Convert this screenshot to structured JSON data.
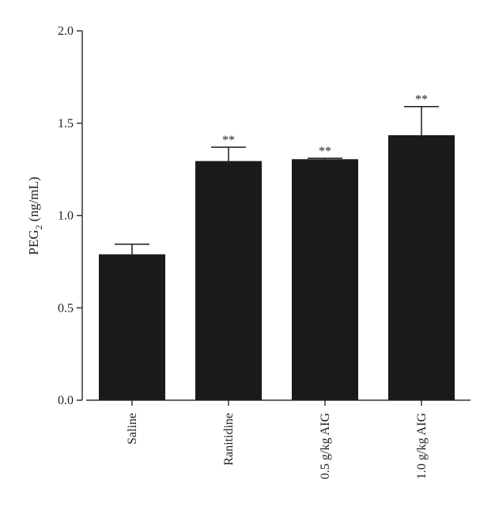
{
  "chart_data": {
    "type": "bar",
    "categories": [
      "Saline",
      "Ranitidine",
      "0.5 g/kg AIG",
      "1.0 g/kg AIG"
    ],
    "values": [
      0.79,
      1.295,
      1.305,
      1.435
    ],
    "errors": [
      0.055,
      0.075,
      0.005,
      0.155
    ],
    "significance": [
      "",
      "**",
      "**",
      "**"
    ],
    "ylabel_main": "PEG",
    "ylabel_sub": "2",
    "ylabel_unit": " (ng/mL)",
    "ylim": [
      0,
      2.0
    ],
    "yticks": [
      0.0,
      0.5,
      1.0,
      1.5,
      2.0
    ],
    "ytick_labels": [
      "0.0",
      "0.5",
      "1.0",
      "1.5",
      "2.0"
    ],
    "grid": false,
    "bar_color": "#1a1a1a",
    "axis_color": "#333333"
  }
}
